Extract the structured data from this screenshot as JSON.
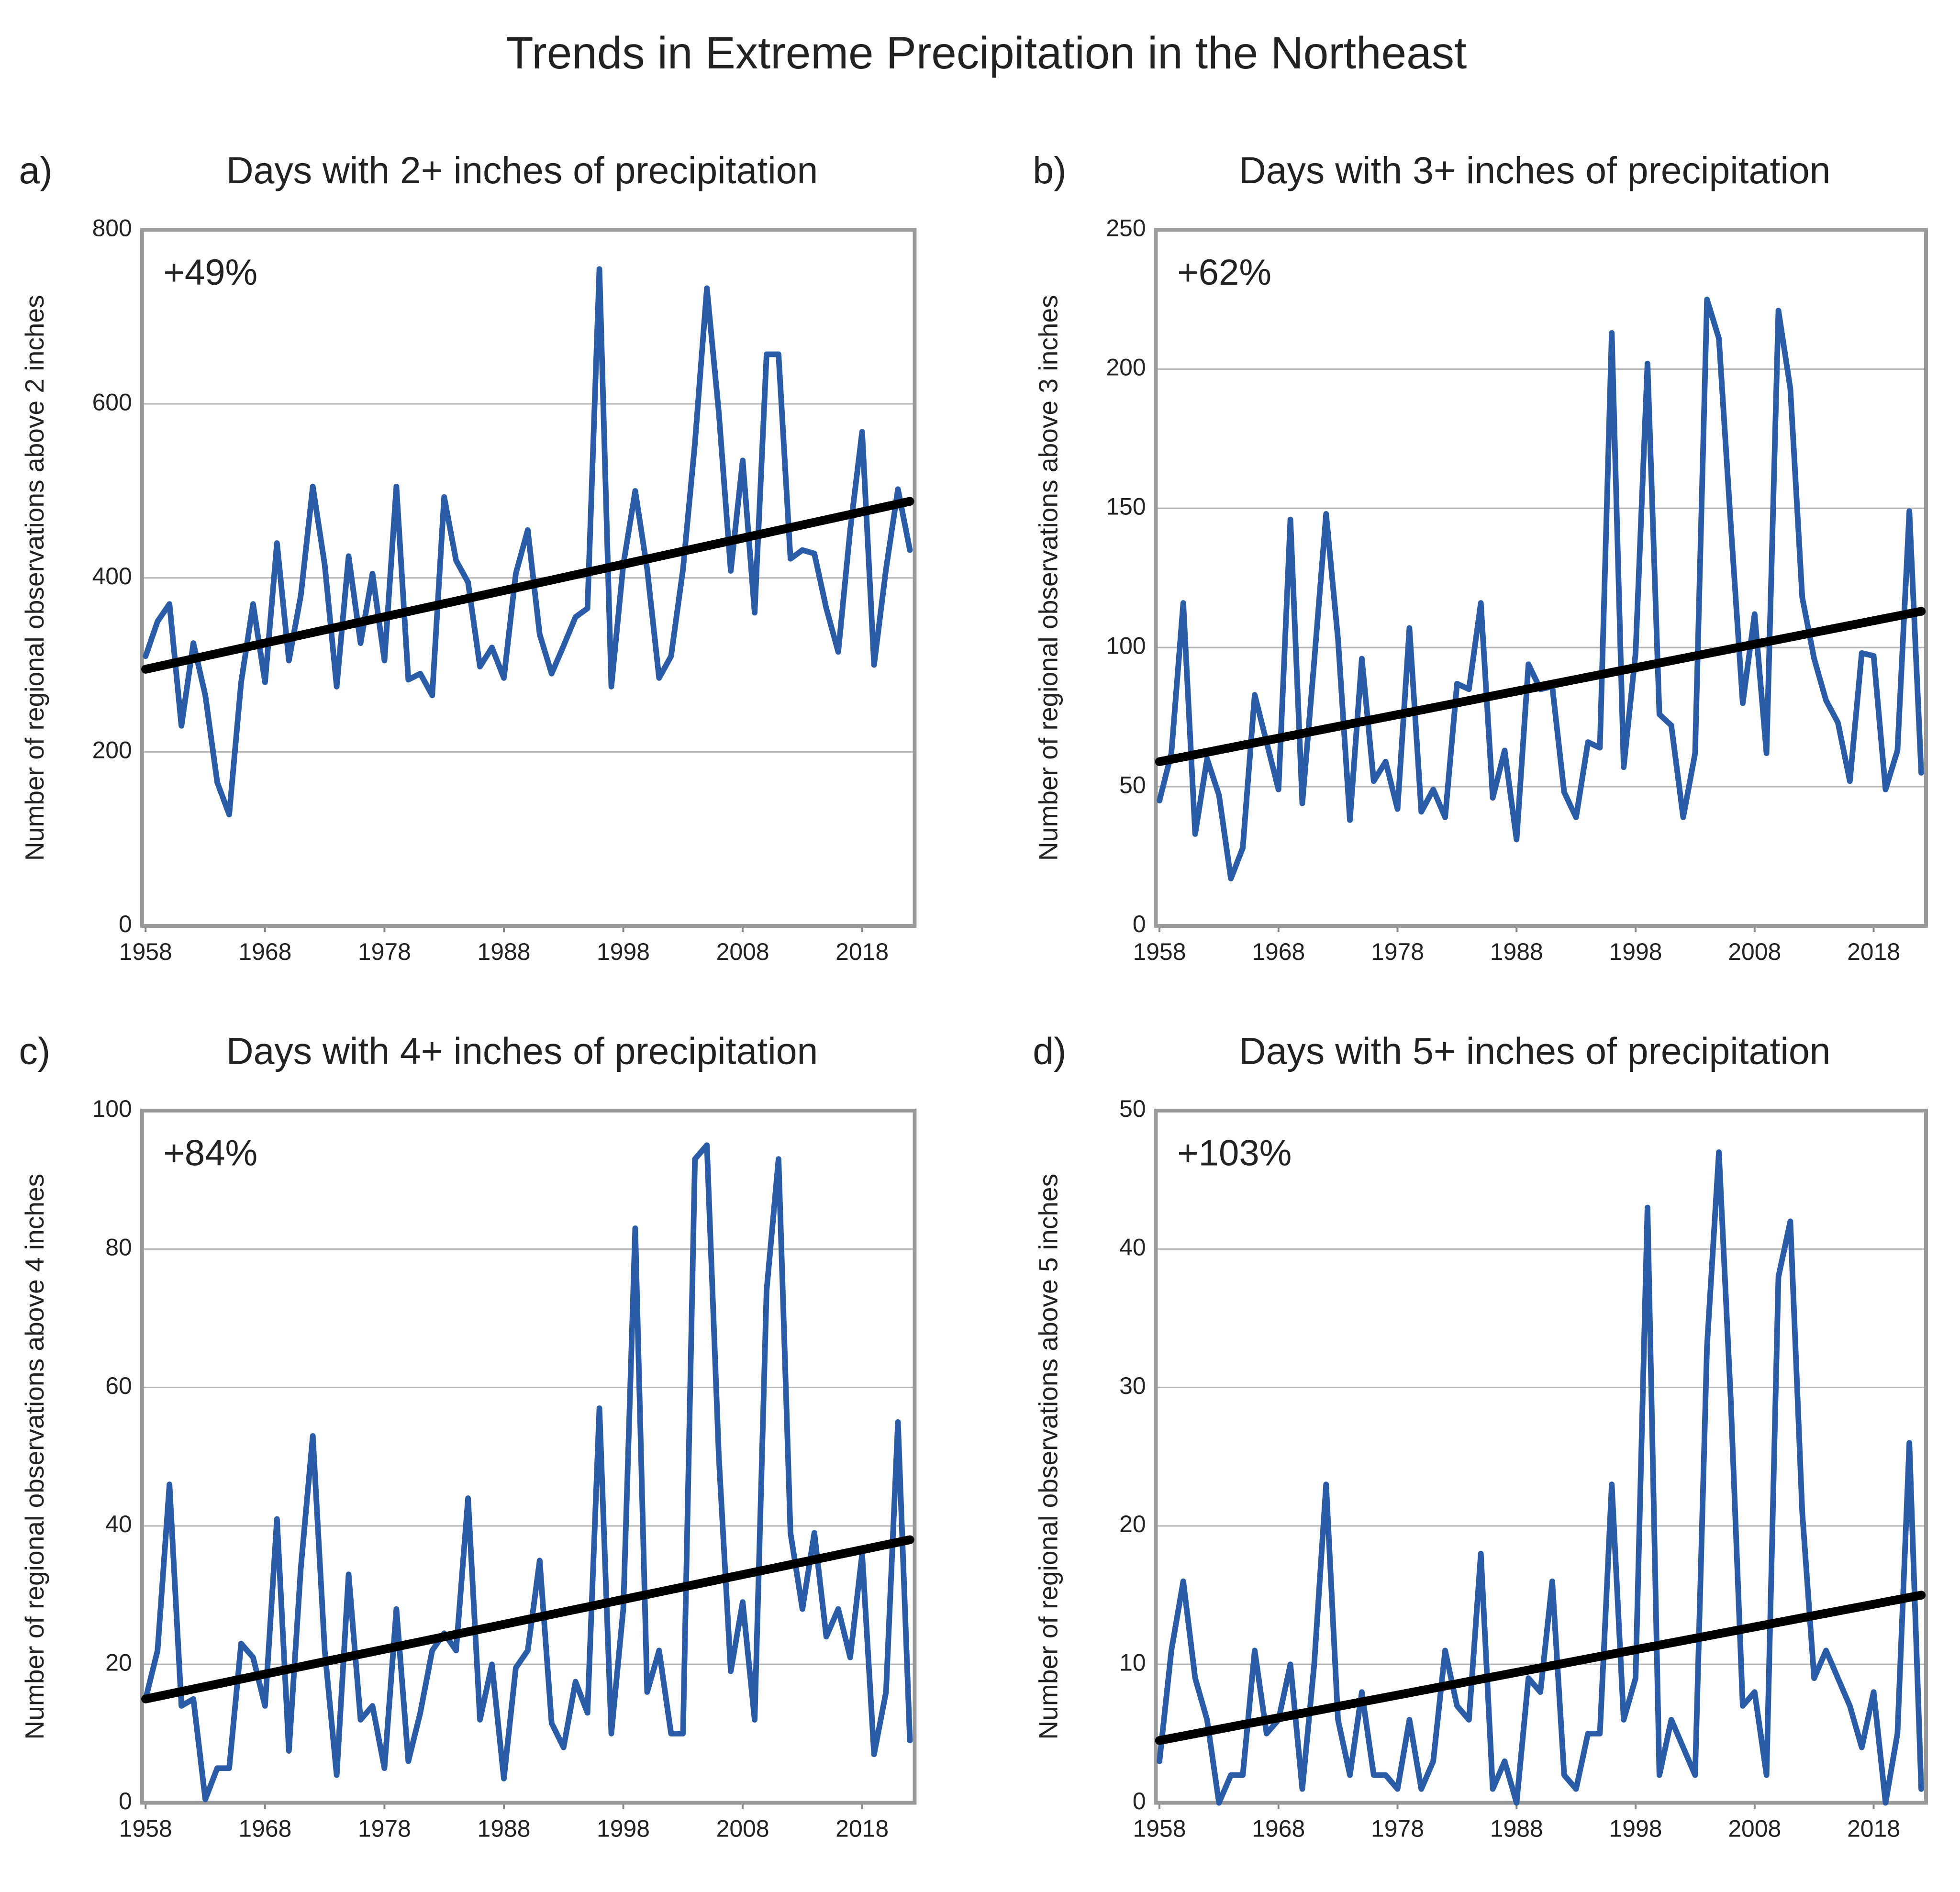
{
  "title": "Trends in Extreme Precipitation in the Northeast",
  "chart_data": [
    {
      "type": "line",
      "label": "a)",
      "title": "Days with 2+ inches of precipitation",
      "ylabel": "Number of regional observations above 2 inches",
      "annotation": "+49%",
      "xlim": [
        1957.7,
        2022.4
      ],
      "xticks": [
        1958,
        1968,
        1978,
        1988,
        1998,
        2008,
        2018
      ],
      "ylim": [
        0,
        800
      ],
      "yticks": [
        0,
        200,
        400,
        600,
        800
      ],
      "grid": true,
      "x": [
        1958,
        1959,
        1960,
        1961,
        1962,
        1963,
        1964,
        1965,
        1966,
        1967,
        1968,
        1969,
        1970,
        1971,
        1972,
        1973,
        1974,
        1975,
        1976,
        1977,
        1978,
        1979,
        1980,
        1981,
        1982,
        1983,
        1984,
        1985,
        1986,
        1987,
        1988,
        1989,
        1990,
        1991,
        1992,
        1993,
        1994,
        1995,
        1996,
        1997,
        1998,
        1999,
        2000,
        2001,
        2002,
        2003,
        2004,
        2005,
        2006,
        2007,
        2008,
        2009,
        2010,
        2011,
        2012,
        2013,
        2014,
        2015,
        2016,
        2017,
        2018,
        2019,
        2020,
        2021,
        2022
      ],
      "series": [
        {
          "color": "#2a5ca8",
          "values": [
            310,
            350,
            370,
            230,
            325,
            265,
            165,
            128,
            280,
            370,
            280,
            440,
            305,
            380,
            505,
            415,
            275,
            425,
            325,
            405,
            305,
            505,
            283,
            290,
            265,
            493,
            420,
            395,
            298,
            320,
            285,
            405,
            455,
            335,
            290,
            322,
            355,
            365,
            755,
            275,
            415,
            500,
            410,
            285,
            310,
            410,
            555,
            733,
            590,
            408,
            535,
            360,
            657,
            657,
            422,
            432,
            428,
            365,
            315,
            455,
            568,
            300,
            410,
            502,
            432
          ]
        },
        {
          "color": "#000000",
          "x": [
            1958,
            2022
          ],
          "values": [
            295,
            488
          ]
        }
      ]
    },
    {
      "type": "line",
      "label": "b)",
      "title": "Days with 3+ inches of precipitation",
      "ylabel": "Number of regional observations above 3 inches",
      "annotation": "+62%",
      "xlim": [
        1957.7,
        2022.4
      ],
      "xticks": [
        1958,
        1968,
        1978,
        1988,
        1998,
        2008,
        2018
      ],
      "ylim": [
        0,
        250
      ],
      "yticks": [
        0,
        50,
        100,
        150,
        200,
        250
      ],
      "grid": true,
      "x": [
        1958,
        1959,
        1960,
        1961,
        1962,
        1963,
        1964,
        1965,
        1966,
        1967,
        1968,
        1969,
        1970,
        1971,
        1972,
        1973,
        1974,
        1975,
        1976,
        1977,
        1978,
        1979,
        1980,
        1981,
        1982,
        1983,
        1984,
        1985,
        1986,
        1987,
        1988,
        1989,
        1990,
        1991,
        1992,
        1993,
        1994,
        1995,
        1996,
        1997,
        1998,
        1999,
        2000,
        2001,
        2002,
        2003,
        2004,
        2005,
        2006,
        2007,
        2008,
        2009,
        2010,
        2011,
        2012,
        2013,
        2014,
        2015,
        2016,
        2017,
        2018,
        2019,
        2020,
        2021,
        2022
      ],
      "series": [
        {
          "color": "#2a5ca8",
          "values": [
            45,
            62,
            116,
            33,
            60,
            47,
            17,
            28,
            83,
            66,
            49,
            146,
            44,
            95,
            148,
            103,
            38,
            96,
            52,
            59,
            42,
            107,
            41,
            49,
            39,
            87,
            85,
            116,
            46,
            63,
            31,
            94,
            85,
            86,
            48,
            39,
            66,
            64,
            213,
            57,
            98,
            202,
            76,
            72,
            39,
            62,
            225,
            211,
            144,
            80,
            112,
            62,
            221,
            193,
            118,
            96,
            81,
            73,
            52,
            98,
            97,
            49,
            63,
            149,
            55
          ]
        },
        {
          "color": "#000000",
          "x": [
            1958,
            2022
          ],
          "values": [
            59,
            113
          ]
        }
      ]
    },
    {
      "type": "line",
      "label": "c)",
      "title": "Days with 4+ inches of precipitation",
      "ylabel": "Number of regional observations above 4 inches",
      "annotation": "+84%",
      "xlim": [
        1957.7,
        2022.4
      ],
      "xticks": [
        1958,
        1968,
        1978,
        1988,
        1998,
        2008,
        2018
      ],
      "ylim": [
        0,
        100
      ],
      "yticks": [
        0,
        20,
        40,
        60,
        80,
        100
      ],
      "grid": true,
      "x": [
        1958,
        1959,
        1960,
        1961,
        1962,
        1963,
        1964,
        1965,
        1966,
        1967,
        1968,
        1969,
        1970,
        1971,
        1972,
        1973,
        1974,
        1975,
        1976,
        1977,
        1978,
        1979,
        1980,
        1981,
        1982,
        1983,
        1984,
        1985,
        1986,
        1987,
        1988,
        1989,
        1990,
        1991,
        1992,
        1993,
        1994,
        1995,
        1996,
        1997,
        1998,
        1999,
        2000,
        2001,
        2002,
        2003,
        2004,
        2005,
        2006,
        2007,
        2008,
        2009,
        2010,
        2011,
        2012,
        2013,
        2014,
        2015,
        2016,
        2017,
        2018,
        2019,
        2020,
        2021,
        2022
      ],
      "series": [
        {
          "color": "#2a5ca8",
          "values": [
            15,
            22,
            46,
            14,
            15,
            0.5,
            5,
            5,
            23,
            21,
            14,
            41,
            7.5,
            34,
            53,
            22,
            4,
            33,
            12,
            14,
            5,
            28,
            6,
            13,
            22,
            24.5,
            22,
            44,
            12,
            20,
            3.5,
            19.5,
            22,
            35,
            11.5,
            8,
            17.5,
            13,
            57,
            10,
            28,
            83,
            16,
            22,
            10,
            10,
            93,
            95,
            50,
            19,
            29,
            12,
            74,
            93,
            39,
            28,
            39,
            24,
            28,
            21,
            36,
            7,
            16,
            55,
            9
          ]
        },
        {
          "color": "#000000",
          "x": [
            1958,
            2022
          ],
          "values": [
            15,
            38
          ]
        }
      ]
    },
    {
      "type": "line",
      "label": "d)",
      "title": "Days with 5+ inches of precipitation",
      "ylabel": "Number of regional observations above 5 inches",
      "annotation": "+103%",
      "xlim": [
        1957.7,
        2022.4
      ],
      "xticks": [
        1958,
        1968,
        1978,
        1988,
        1998,
        2008,
        2018
      ],
      "ylim": [
        0,
        50
      ],
      "yticks": [
        0,
        10,
        20,
        30,
        40,
        50
      ],
      "grid": true,
      "x": [
        1958,
        1959,
        1960,
        1961,
        1962,
        1963,
        1964,
        1965,
        1966,
        1967,
        1968,
        1969,
        1970,
        1971,
        1972,
        1973,
        1974,
        1975,
        1976,
        1977,
        1978,
        1979,
        1980,
        1981,
        1982,
        1983,
        1984,
        1985,
        1986,
        1987,
        1988,
        1989,
        1990,
        1991,
        1992,
        1993,
        1994,
        1995,
        1996,
        1997,
        1998,
        1999,
        2000,
        2001,
        2002,
        2003,
        2004,
        2005,
        2006,
        2007,
        2008,
        2009,
        2010,
        2011,
        2012,
        2013,
        2014,
        2015,
        2016,
        2017,
        2018,
        2019,
        2020,
        2021,
        2022
      ],
      "series": [
        {
          "color": "#2a5ca8",
          "values": [
            3,
            11,
            16,
            9,
            6,
            0,
            2,
            2,
            11,
            5,
            6,
            10,
            1,
            10,
            23,
            6,
            2,
            8,
            2,
            2,
            1,
            6,
            1,
            3,
            11,
            7,
            6,
            18,
            1,
            3,
            0,
            9,
            8,
            16,
            2,
            1,
            5,
            5,
            23,
            6,
            9,
            43,
            2,
            6,
            4,
            2,
            33,
            47,
            29,
            7,
            8,
            2,
            38,
            42,
            21,
            9,
            11,
            9,
            7,
            4,
            8,
            0,
            5,
            26,
            1
          ]
        },
        {
          "color": "#000000",
          "x": [
            1958,
            2022
          ],
          "values": [
            4.5,
            15
          ]
        }
      ]
    }
  ]
}
